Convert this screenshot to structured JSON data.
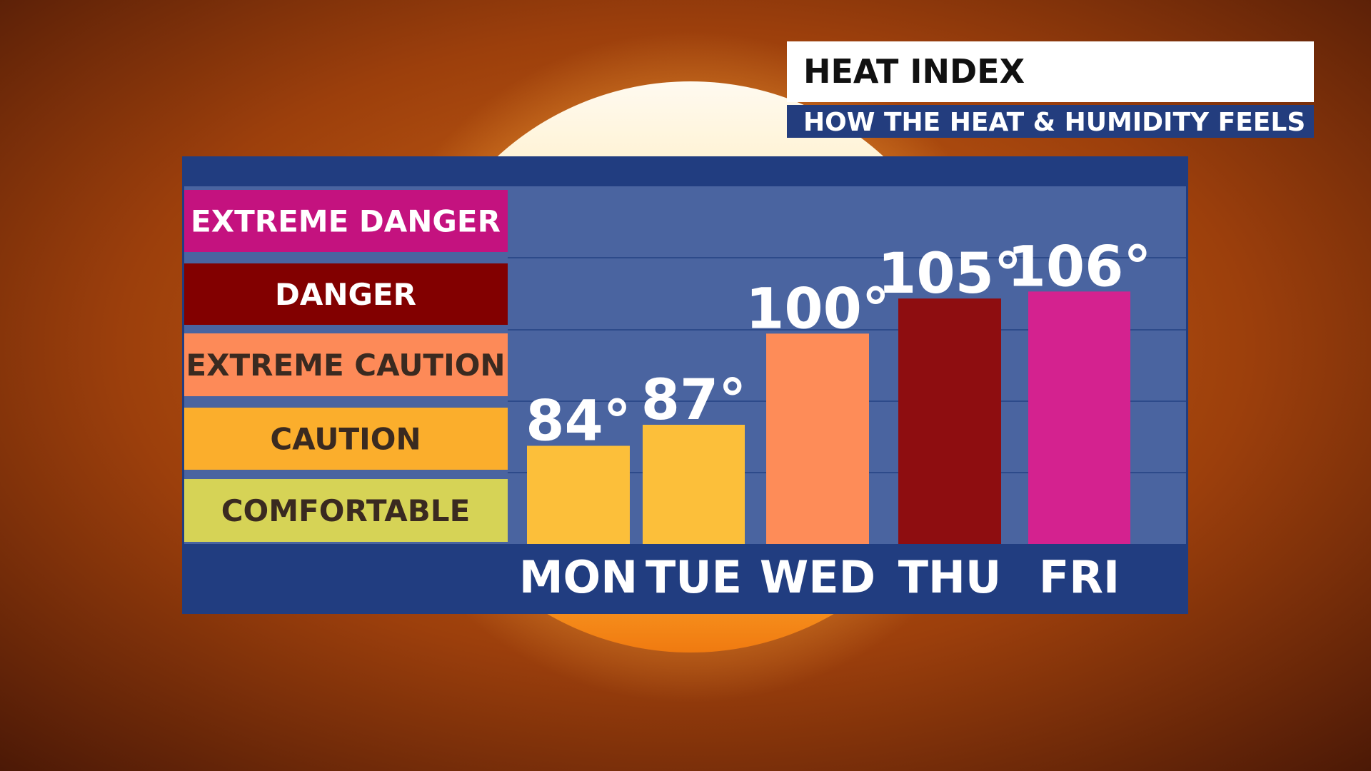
{
  "title": "HEAT INDEX",
  "subtitle": "HOW THE HEAT & HUMIDITY FEELS",
  "chart_data": {
    "type": "bar",
    "categories": [
      "MON",
      "TUE",
      "WED",
      "THU",
      "FRI"
    ],
    "values": [
      84,
      87,
      100,
      105,
      106
    ],
    "value_labels": [
      "84°",
      "87°",
      "100°",
      "105°",
      "106°"
    ],
    "colors": [
      "#fcbf3a",
      "#fcbf3a",
      "#fe8c58",
      "#8e0d10",
      "#d4228f"
    ],
    "ylim": [
      70,
      121
    ],
    "zones": [
      {
        "label": "EXTREME DANGER",
        "color": "#c4127f",
        "text_color": "#ffffff"
      },
      {
        "label": "DANGER",
        "color": "#820000",
        "text_color": "#ffffff"
      },
      {
        "label": "EXTREME CAUTION",
        "color": "#fd8a58",
        "text_color": "#3a2a20"
      },
      {
        "label": "CAUTION",
        "color": "#fbae2c",
        "text_color": "#3a2a20"
      },
      {
        "label": "COMFORTABLE",
        "color": "#d6d356",
        "text_color": "#3a2a20"
      }
    ]
  }
}
